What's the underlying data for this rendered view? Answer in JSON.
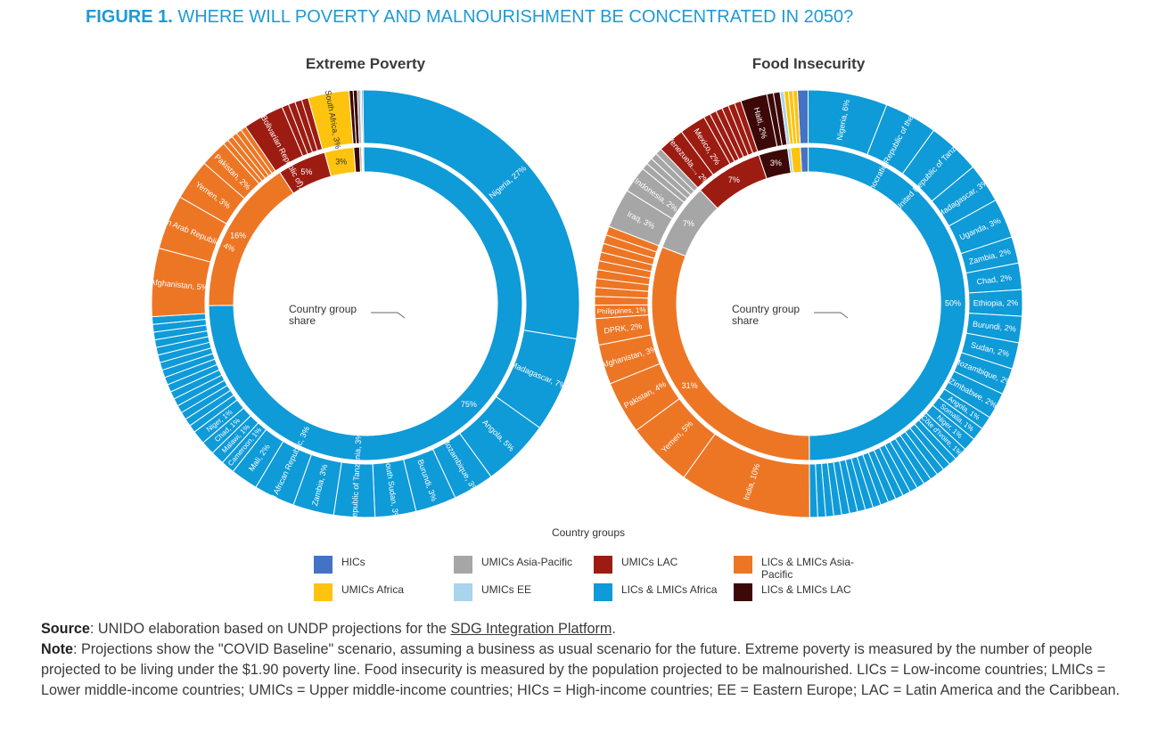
{
  "figure": {
    "number": "FIGURE 1.",
    "title": "WHERE WILL POVERTY AND MALNOURISHMENT BE CONCENTRATED IN 2050?"
  },
  "colors": {
    "HICs": "#4472c4",
    "UMICs Asia-Pacific": "#a6a6a6",
    "UMICs LAC": "#9c1c12",
    "LICs & LMICs Asia-Pacific": "#ed7625",
    "UMICs Africa": "#fdc30f",
    "UMICs EE": "#a8d4ec",
    "LICs & LMICs Africa": "#0f9ad8",
    "LICs & LMICs LAC": "#3c0808"
  },
  "chart_data": [
    {
      "type": "pie",
      "title": "Extreme Poverty",
      "center_label": "Country group share",
      "inner": [
        {
          "group": "LICs & LMICs Africa",
          "value": 75,
          "label": "75%"
        },
        {
          "group": "LICs & LMICs Asia-Pacific",
          "value": 16,
          "label": "16%"
        },
        {
          "group": "UMICs LAC",
          "value": 5,
          "label": "5%"
        },
        {
          "group": "UMICs Africa",
          "value": 3,
          "label": "3%"
        },
        {
          "group": "LICs & LMICs LAC",
          "value": 0.6,
          "label": ""
        },
        {
          "group": "UMICs Asia-Pacific",
          "value": 0.2,
          "label": ""
        },
        {
          "group": "UMICs EE",
          "value": 0.1,
          "label": ""
        },
        {
          "group": "HICs",
          "value": 0.1,
          "label": ""
        }
      ],
      "outer": [
        {
          "group": "LICs & LMICs Africa",
          "value": 27,
          "label": "Nigeria, 27%"
        },
        {
          "group": "LICs & LMICs Africa",
          "value": 7,
          "label": "Madagascar, 7%"
        },
        {
          "group": "LICs & LMICs Africa",
          "value": 5,
          "label": "Angola, 5%"
        },
        {
          "group": "LICs & LMICs Africa",
          "value": 3,
          "label": "Mozambique, 3%"
        },
        {
          "group": "LICs & LMICs Africa",
          "value": 3,
          "label": "Burundi, 3%"
        },
        {
          "group": "LICs & LMICs Africa",
          "value": 3,
          "label": "South Sudan, 3%"
        },
        {
          "group": "LICs & LMICs Africa",
          "value": 3,
          "label": "United Republic of Tanzania, 3%"
        },
        {
          "group": "LICs & LMICs Africa",
          "value": 3,
          "label": "Zambia, 3%"
        },
        {
          "group": "LICs & LMICs Africa",
          "value": 3,
          "label": "Central African Republic, 3%"
        },
        {
          "group": "LICs & LMICs Africa",
          "value": 2,
          "label": "Mali, 2%"
        },
        {
          "group": "LICs & LMICs Africa",
          "value": 1,
          "label": "Cameroon, 1%"
        },
        {
          "group": "LICs & LMICs Africa",
          "value": 1,
          "label": "Malawi, 1%"
        },
        {
          "group": "LICs & LMICs Africa",
          "value": 1,
          "label": "Chad, 1%"
        },
        {
          "group": "LICs & LMICs Africa",
          "value": 1,
          "label": "Niger, 1%"
        },
        {
          "group": "LICs & LMICs Africa",
          "value": 9,
          "label": "",
          "split": 16
        },
        {
          "group": "LICs & LMICs Asia-Pacific",
          "value": 5,
          "label": "Afghanistan, 5%"
        },
        {
          "group": "LICs & LMICs Asia-Pacific",
          "value": 4,
          "label": "Syrian Arab Republic, 4%"
        },
        {
          "group": "LICs & LMICs Asia-Pacific",
          "value": 3,
          "label": "Yemen, 3%"
        },
        {
          "group": "LICs & LMICs Asia-Pacific",
          "value": 2,
          "label": "Pakistan, 2%"
        },
        {
          "group": "LICs & LMICs Asia-Pacific",
          "value": 2,
          "label": "",
          "split": 5
        },
        {
          "group": "UMICs LAC",
          "value": 3,
          "label": "Venezuela (Bolivarian Republic of), 3%"
        },
        {
          "group": "UMICs LAC",
          "value": 2,
          "label": "",
          "split": 4
        },
        {
          "group": "UMICs Africa",
          "value": 3,
          "label": "South Africa, 3%"
        },
        {
          "group": "LICs & LMICs LAC",
          "value": 0.6,
          "label": "",
          "split": 2
        },
        {
          "group": "UMICs Asia-Pacific",
          "value": 0.2,
          "label": ""
        },
        {
          "group": "UMICs EE",
          "value": 0.1,
          "label": ""
        },
        {
          "group": "HICs",
          "value": 0.1,
          "label": ""
        }
      ]
    },
    {
      "type": "pie",
      "title": "Food Insecurity",
      "center_label": "Country group share",
      "inner": [
        {
          "group": "HICs",
          "value": 0.8,
          "label": ""
        },
        {
          "group": "LICs & LMICs Africa",
          "value": 50,
          "label": "50%"
        },
        {
          "group": "LICs & LMICs Asia-Pacific",
          "value": 31,
          "label": "31%"
        },
        {
          "group": "UMICs Asia-Pacific",
          "value": 7,
          "label": "7%"
        },
        {
          "group": "UMICs LAC",
          "value": 7,
          "label": "7%"
        },
        {
          "group": "LICs & LMICs LAC",
          "value": 3,
          "label": "3%"
        },
        {
          "group": "UMICs EE",
          "value": 0.3,
          "label": ""
        },
        {
          "group": "UMICs Africa",
          "value": 1,
          "label": ""
        }
      ],
      "outer": [
        {
          "group": "HICs",
          "value": 0.8,
          "label": ""
        },
        {
          "group": "LICs & LMICs Africa",
          "value": 6,
          "label": "Nigeria, 6%"
        },
        {
          "group": "LICs & LMICs Africa",
          "value": 4,
          "label": "Democratic Republic of the Congo, 4%"
        },
        {
          "group": "LICs & LMICs Africa",
          "value": 4,
          "label": "United Republic of Tanzania, 4%"
        },
        {
          "group": "LICs & LMICs Africa",
          "value": 3,
          "label": "Madagascar, 3%"
        },
        {
          "group": "LICs & LMICs Africa",
          "value": 3,
          "label": "Uganda, 3%"
        },
        {
          "group": "LICs & LMICs Africa",
          "value": 2,
          "label": "Zambia, 2%"
        },
        {
          "group": "LICs & LMICs Africa",
          "value": 2,
          "label": "Chad, 2%"
        },
        {
          "group": "LICs & LMICs Africa",
          "value": 2,
          "label": "Ethiopia, 2%"
        },
        {
          "group": "LICs & LMICs Africa",
          "value": 2,
          "label": "Burundi, 2%"
        },
        {
          "group": "LICs & LMICs Africa",
          "value": 2,
          "label": "Sudan, 2%"
        },
        {
          "group": "LICs & LMICs Africa",
          "value": 2,
          "label": "Mozambique, 2%"
        },
        {
          "group": "LICs & LMICs Africa",
          "value": 2,
          "label": "Zimbabwe, 2%"
        },
        {
          "group": "LICs & LMICs Africa",
          "value": 1,
          "label": "Angola, 1%"
        },
        {
          "group": "LICs & LMICs Africa",
          "value": 1,
          "label": "Somalia, 1%"
        },
        {
          "group": "LICs & LMICs Africa",
          "value": 1,
          "label": "Niger, 1%"
        },
        {
          "group": "LICs & LMICs Africa",
          "value": 1,
          "label": "Côte d'Ivoire, 1%"
        },
        {
          "group": "LICs & LMICs Africa",
          "value": 12,
          "label": "",
          "split": 20
        },
        {
          "group": "LICs & LMICs Asia-Pacific",
          "value": 10,
          "label": "India, 10%"
        },
        {
          "group": "LICs & LMICs Asia-Pacific",
          "value": 5,
          "label": "Yemen, 5%"
        },
        {
          "group": "LICs & LMICs Asia-Pacific",
          "value": 4,
          "label": "Pakistan, 4%"
        },
        {
          "group": "LICs & LMICs Asia-Pacific",
          "value": 3,
          "label": "Afghanistan, 3%"
        },
        {
          "group": "LICs & LMICs Asia-Pacific",
          "value": 2,
          "label": "DPRK, 2%"
        },
        {
          "group": "LICs & LMICs Asia-Pacific",
          "value": 1,
          "label": "Philippines, 1%"
        },
        {
          "group": "LICs & LMICs Asia-Pacific",
          "value": 6,
          "label": "",
          "split": 9
        },
        {
          "group": "UMICs Asia-Pacific",
          "value": 3,
          "label": "Iraq, 3%"
        },
        {
          "group": "UMICs Asia-Pacific",
          "value": 2,
          "label": "Indonesia, 2%"
        },
        {
          "group": "UMICs Asia-Pacific",
          "value": 2,
          "label": "",
          "split": 4
        },
        {
          "group": "UMICs LAC",
          "value": 2,
          "label": "Venezuela..., 2%"
        },
        {
          "group": "UMICs LAC",
          "value": 2,
          "label": "Mexico, 2%"
        },
        {
          "group": "UMICs LAC",
          "value": 3,
          "label": "",
          "split": 6
        },
        {
          "group": "LICs & LMICs LAC",
          "value": 2,
          "label": "Haiti, 2%"
        },
        {
          "group": "LICs & LMICs LAC",
          "value": 1,
          "label": "",
          "split": 2
        },
        {
          "group": "UMICs EE",
          "value": 0.3,
          "label": ""
        },
        {
          "group": "UMICs Africa",
          "value": 1,
          "label": "",
          "split": 3
        }
      ]
    }
  ],
  "legend": {
    "title": "Country groups",
    "items": [
      {
        "label": "HICs",
        "group": "HICs"
      },
      {
        "label": "UMICs Asia-Pacific",
        "group": "UMICs Asia-Pacific"
      },
      {
        "label": "UMICs LAC",
        "group": "UMICs LAC"
      },
      {
        "label": "LICs & LMICs Asia-Pacific",
        "group": "LICs & LMICs Asia-Pacific"
      },
      {
        "label": "UMICs Africa",
        "group": "UMICs Africa"
      },
      {
        "label": "UMICs EE",
        "group": "UMICs EE"
      },
      {
        "label": "LICs & LMICs Africa",
        "group": "LICs & LMICs Africa"
      },
      {
        "label": "LICs & LMICs LAC",
        "group": "LICs & LMICs LAC"
      }
    ]
  },
  "notes": {
    "source_label": "Source",
    "source_text": ": UNIDO elaboration based on UNDP projections for the ",
    "source_link": "SDG Integration Platform",
    "source_end": ".",
    "note_label": "Note",
    "note_text": ": Projections show the \"COVID Baseline\" scenario, assuming a business as usual scenario for the future. Extreme poverty is measured by the number of people projected to be living under the $1.90 poverty line. Food insecurity is measured by the population projected to be malnourished. LICs = Low-income countries; LMICs = Lower middle-income countries; UMICs = Upper middle-income countries; HICs = High-income countries; EE = Eastern Europe; LAC = Latin America and the Caribbean."
  }
}
